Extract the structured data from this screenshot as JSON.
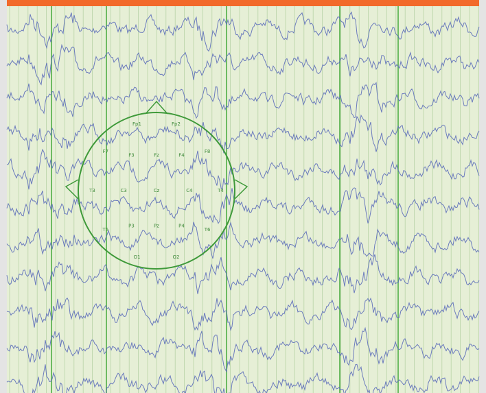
{
  "head_diagram": {
    "electrodes": [
      "Fp1",
      "Fp2",
      "F7",
      "F3",
      "Fz",
      "F4",
      "F8",
      "T3",
      "C3",
      "Cz",
      "C4",
      "T4",
      "T5",
      "P3",
      "Pz",
      "P4",
      "T6",
      "O1",
      "O2"
    ]
  }
}
